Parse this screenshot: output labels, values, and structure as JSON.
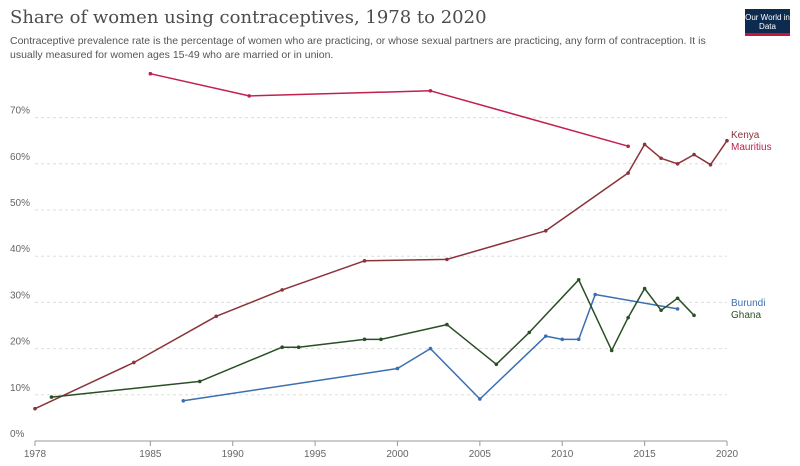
{
  "header": {
    "title": "Share of women using contraceptives, 1978 to 2020",
    "subtitle": "Contraceptive prevalence rate is the percentage of women who are practicing, or whose sexual partners are practicing, any form of contraception. It is usually measured for women ages 15-49 who are married or in union.",
    "logo": "Our World in Data"
  },
  "chart_data": {
    "type": "line",
    "title": "Share of women using contraceptives, 1978 to 2020",
    "xlabel": "",
    "ylabel": "",
    "xlim": [
      1978,
      2020
    ],
    "ylim": [
      0,
      80
    ],
    "x_ticks": [
      "1978",
      "1985",
      "1990",
      "1995",
      "2000",
      "2005",
      "2010",
      "2015",
      "2020"
    ],
    "y_ticks": [
      "0%",
      "10%",
      "20%",
      "30%",
      "40%",
      "50%",
      "60%",
      "70%"
    ],
    "grid": "horizontal",
    "series": [
      {
        "name": "Kenya",
        "color": "#8a3339",
        "points": [
          [
            1978,
            7
          ],
          [
            1984,
            17
          ],
          [
            1989,
            27
          ],
          [
            1993,
            32.7
          ],
          [
            1998,
            39
          ],
          [
            2003,
            39.3
          ],
          [
            2009,
            45.5
          ],
          [
            2014,
            58
          ],
          [
            2015,
            64.2
          ],
          [
            2016,
            61.2
          ],
          [
            2017,
            60
          ],
          [
            2018,
            62
          ],
          [
            2019,
            59.8
          ],
          [
            2020,
            65
          ]
        ]
      },
      {
        "name": "Mauritius",
        "color": "#c21f4d",
        "points": [
          [
            1985,
            79.5
          ],
          [
            1991,
            74.7
          ],
          [
            2002,
            75.8
          ],
          [
            2014,
            63.8
          ]
        ]
      },
      {
        "name": "Burundi",
        "color": "#3a6fb0",
        "points": [
          [
            1987,
            8.7
          ],
          [
            2000,
            15.7
          ],
          [
            2002,
            20
          ],
          [
            2005,
            9.1
          ],
          [
            2009,
            22.7
          ],
          [
            2010,
            22
          ],
          [
            2011,
            22
          ],
          [
            2012,
            31.7
          ],
          [
            2017,
            28.6
          ]
        ]
      },
      {
        "name": "Ghana",
        "color": "#2a4f26",
        "points": [
          [
            1979,
            9.5
          ],
          [
            1988,
            12.9
          ],
          [
            1993,
            20.3
          ],
          [
            1994,
            20.3
          ],
          [
            1998,
            22
          ],
          [
            1999,
            22
          ],
          [
            2003,
            25.2
          ],
          [
            2006,
            16.6
          ],
          [
            2008,
            23.5
          ],
          [
            2011,
            34.9
          ],
          [
            2013,
            19.6
          ],
          [
            2014,
            26.7
          ],
          [
            2015,
            33
          ],
          [
            2016,
            28.3
          ],
          [
            2017,
            30.9
          ],
          [
            2018,
            27.2
          ]
        ]
      }
    ]
  }
}
